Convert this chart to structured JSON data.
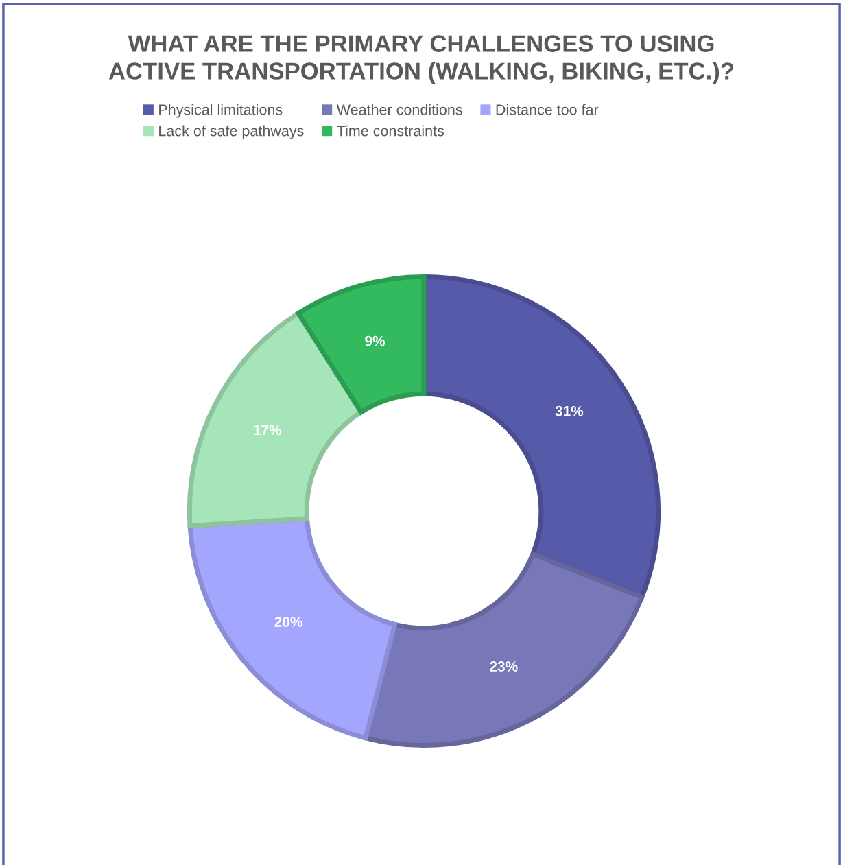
{
  "chart_data": {
    "type": "donut",
    "title": "WHAT ARE THE PRIMARY CHALLENGES TO USING\nACTIVE TRANSPORTATION (WALKING, BIKING, ETC.)?",
    "categories": [
      "Physical limitations",
      "Weather conditions",
      "Distance too far",
      "Lack of safe pathways",
      "Time constraints"
    ],
    "values": [
      31,
      23,
      20,
      17,
      9
    ],
    "value_labels": [
      "31%",
      "23%",
      "20%",
      "17%",
      "9%"
    ],
    "colors": [
      "#565aa8",
      "#7878b8",
      "#a3a6fc",
      "#a6e5b9",
      "#33b95e"
    ],
    "legend": "top"
  }
}
